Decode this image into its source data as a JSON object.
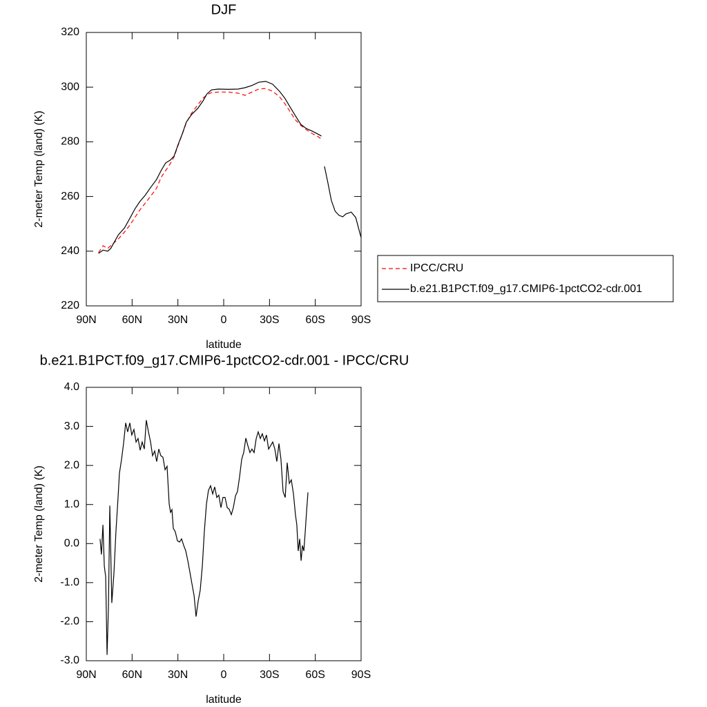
{
  "chart_data": [
    {
      "type": "line",
      "title": "DJF",
      "xlabel": "latitude",
      "ylabel": "2-meter Temp (land) (K)",
      "x": [
        82,
        79,
        76,
        74,
        72,
        69,
        65,
        61.5,
        58,
        55,
        51.5,
        48,
        44,
        41,
        38,
        35,
        32.5,
        30,
        27,
        24.5,
        21,
        17,
        13.5,
        11,
        8,
        3.5,
        -3,
        -9.5,
        -14,
        -18.5,
        -23,
        -27.5,
        -32,
        -36.5,
        -40,
        -43.5,
        -47,
        -50.5,
        -54,
        -58,
        -61.5,
        -64,
        -65,
        -66,
        -68,
        -70.5,
        -73,
        -75.5,
        -78,
        -80,
        -83.5,
        -86.5,
        -89,
        -90
      ],
      "series": [
        {
          "name": "IPCC/CRU",
          "color": "#ff0000",
          "dash": true,
          "values": [
            239.5,
            242,
            241,
            242,
            243,
            244.5,
            247,
            249.5,
            252.5,
            255,
            257.5,
            260,
            263,
            267,
            269.5,
            272,
            274.5,
            278.5,
            283,
            287,
            290.5,
            293.5,
            296,
            297.2,
            298,
            298.2,
            298.2,
            297.8,
            297,
            298.2,
            299.3,
            299.5,
            298.5,
            296.5,
            294,
            291,
            288,
            286,
            284.5,
            283,
            282,
            281,
            null,
            null,
            null,
            null,
            null,
            null,
            null,
            null,
            null,
            null,
            null,
            null
          ]
        },
        {
          "name": "b.e21.B1PCT.f09_g17.CMIP6-1pctCO2-cdr.001",
          "color": "#000000",
          "dash": false,
          "values": [
            239.2,
            240.4,
            240,
            241,
            243,
            246,
            248.5,
            252,
            255.6,
            258.1,
            260.4,
            263.2,
            266.2,
            269.5,
            272.3,
            273.3,
            274.8,
            278.8,
            283.1,
            287.2,
            290,
            292.2,
            295,
            297.5,
            299,
            299.3,
            299.2,
            299.3,
            299.8,
            300.6,
            301.8,
            302.1,
            301.1,
            298.5,
            296,
            292.7,
            289.5,
            286.4,
            284.9,
            283.9,
            282.9,
            282.1,
            null,
            271,
            265.7,
            258.6,
            254.6,
            253.1,
            252.6,
            253.6,
            254.3,
            252.3,
            247,
            245
          ]
        }
      ],
      "xlim": [
        90,
        -90
      ],
      "xticks": [
        {
          "value": 90,
          "label": "90N"
        },
        {
          "value": 60,
          "label": "60N"
        },
        {
          "value": 30,
          "label": "30N"
        },
        0,
        {
          "value": -30,
          "label": "30S"
        },
        {
          "value": -60,
          "label": "60S"
        },
        {
          "value": -90,
          "label": "90S"
        }
      ],
      "ylim": [
        220,
        320
      ],
      "yticks": [
        220,
        240,
        260,
        280,
        300,
        320
      ],
      "legend": "right",
      "grid": false
    },
    {
      "type": "line",
      "title": "b.e21.B1PCT.f09_g17.CMIP6-1pctCO2-cdr.001 - IPCC/CRU",
      "xlabel": "latitude",
      "ylabel": "2-meter Temp (land) (K)",
      "x": [
        81.0,
        80.1,
        79.1,
        78.2,
        77.3,
        76.4,
        75.5,
        74.6,
        73.3,
        71.9,
        70.6,
        69.2,
        68.3,
        66.9,
        65.6,
        64.2,
        62.9,
        61.5,
        60.2,
        58.8,
        57.4,
        56.1,
        54.7,
        53.4,
        52.0,
        50.7,
        49.3,
        47.9,
        46.6,
        45.2,
        43.9,
        42.5,
        41.2,
        39.8,
        38.4,
        37.1,
        35.7,
        34.8,
        33.9,
        33.0,
        31.7,
        30.3,
        28.9,
        27.6,
        26.2,
        24.9,
        23.5,
        22.2,
        20.8,
        19.4,
        18.1,
        16.7,
        15.4,
        14.0,
        12.7,
        11.3,
        10.0,
        8.6,
        7.2,
        5.9,
        4.5,
        3.2,
        1.8,
        0.5,
        -0.9,
        -2.3,
        -3.6,
        -5.0,
        -6.3,
        -7.7,
        -9.0,
        -10.4,
        -11.8,
        -13.1,
        -14.5,
        -15.8,
        -17.2,
        -18.5,
        -19.9,
        -21.3,
        -22.6,
        -24.0,
        -25.3,
        -26.7,
        -28.0,
        -29.4,
        -30.8,
        -32.1,
        -33.5,
        -34.8,
        -36.2,
        -37.5,
        -38.9,
        -40.3,
        -41.6,
        -43.0,
        -44.3,
        -45.7,
        -47.0,
        -47.9,
        -48.8,
        -49.8,
        -50.7,
        -51.6,
        -52.5,
        -53.4,
        -54.3,
        -55.2
      ],
      "color": "#000000",
      "values": [
        0.12,
        -0.28,
        0.48,
        -0.58,
        -0.85,
        -2.85,
        -1.64,
        0.97,
        -1.52,
        -0.76,
        0.3,
        1.18,
        1.8,
        2.16,
        2.56,
        3.09,
        2.86,
        3.09,
        2.78,
        2.92,
        2.6,
        2.69,
        2.39,
        2.6,
        2.42,
        3.16,
        2.86,
        2.6,
        2.25,
        2.37,
        2.1,
        2.42,
        2.25,
        2.21,
        1.89,
        1.98,
        1.01,
        0.8,
        0.87,
        0.39,
        0.3,
        0.07,
        0.04,
        0.12,
        -0.05,
        -0.18,
        -0.44,
        -0.72,
        -1.03,
        -1.33,
        -1.87,
        -1.47,
        -1.2,
        -0.58,
        0.3,
        1.01,
        1.36,
        1.48,
        1.27,
        1.45,
        1.18,
        1.24,
        0.92,
        1.18,
        1.18,
        0.92,
        0.88,
        0.74,
        0.92,
        1.22,
        1.33,
        1.71,
        2.16,
        2.33,
        2.7,
        2.51,
        2.33,
        2.42,
        2.33,
        2.69,
        2.86,
        2.69,
        2.81,
        2.63,
        2.78,
        2.42,
        2.51,
        2.6,
        2.42,
        2.1,
        2.56,
        2.16,
        1.33,
        1.18,
        2.07,
        1.54,
        1.63,
        1.27,
        0.74,
        0.48,
        -0.19,
        0.12,
        -0.44,
        -0.05,
        -0.19,
        0.3,
        0.83,
        1.31
      ],
      "xlim": [
        90,
        -90
      ],
      "xticks": [
        {
          "value": 90,
          "label": "90N"
        },
        {
          "value": 60,
          "label": "60N"
        },
        {
          "value": 30,
          "label": "30N"
        },
        0,
        {
          "value": -30,
          "label": "30S"
        },
        {
          "value": -60,
          "label": "60S"
        },
        {
          "value": -90,
          "label": "90S"
        }
      ],
      "ylim": [
        -3,
        4
      ],
      "yticks": [
        {
          "value": -3,
          "label": "-3.0"
        },
        {
          "value": -2,
          "label": "-2.0"
        },
        {
          "value": -1,
          "label": "-1.0"
        },
        {
          "value": 0,
          "label": "0.0"
        },
        {
          "value": 1,
          "label": "1.0"
        },
        {
          "value": 2,
          "label": "2.0"
        },
        {
          "value": 3,
          "label": "3.0"
        },
        {
          "value": 4,
          "label": "4.0"
        }
      ],
      "grid": false
    }
  ]
}
